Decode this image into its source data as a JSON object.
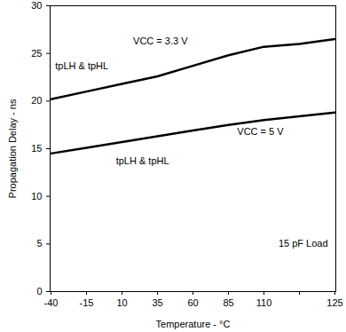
{
  "chart_data": {
    "type": "line",
    "xlabel": "Temperature - °C",
    "ylabel": "Propagation Delay - ns",
    "categories": [
      "-40",
      "-15",
      "10",
      "35",
      "60",
      "85",
      "110",
      null,
      "125"
    ],
    "series": [
      {
        "name": "VCC = 3.3 V",
        "color": "#000000",
        "values": [
          20.2,
          21.0,
          21.8,
          22.6,
          23.7,
          24.8,
          25.7,
          26.0,
          26.5
        ]
      },
      {
        "name": "VCC = 5 V",
        "color": "#000000",
        "values": [
          14.5,
          15.1,
          15.7,
          16.3,
          16.9,
          17.5,
          18.0,
          18.4,
          18.8
        ]
      }
    ],
    "annotations": [
      "VCC = 3.3 V",
      "tpLH & tpHL",
      "VCC = 5 V",
      "tpLH & tpHL",
      "15 pF Load"
    ],
    "ylim": [
      0,
      30
    ],
    "yticks": [
      0,
      5,
      10,
      15,
      20,
      25,
      30
    ],
    "grid": false
  }
}
